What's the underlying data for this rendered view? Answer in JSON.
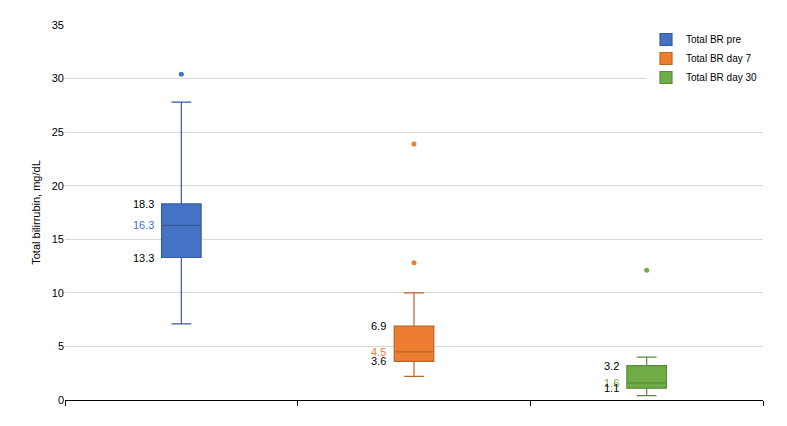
{
  "chart_data": {
    "type": "box",
    "y_label": "Total bilirrubin, mg/dL",
    "ylim": [
      0,
      35
    ],
    "yticks": [
      0,
      5,
      10,
      15,
      20,
      25,
      30,
      35
    ],
    "grid": true,
    "legend": "top-right",
    "data_labels": true,
    "tick_labels": "y",
    "series": [
      {
        "name": "Total BR pre",
        "color": "#4472c4",
        "q1": 13.3,
        "median": 16.3,
        "q3": 18.3,
        "lowerfence": 7.1,
        "upperfence": 27.8,
        "outliers": [
          30.4
        ]
      },
      {
        "name": "Total BR day 7",
        "color": "#ed7d31",
        "q1": 3.6,
        "median": 4.5,
        "q3": 6.9,
        "lowerfence": 2.2,
        "upperfence": 10.0,
        "outliers": [
          12.8,
          23.9
        ]
      },
      {
        "name": "Total BR day 30",
        "color": "#70ad47",
        "q1": 1.1,
        "median": 1.6,
        "q3": 3.2,
        "lowerfence": 0.4,
        "upperfence": 4.0,
        "outliers": [
          12.1
        ]
      }
    ]
  }
}
